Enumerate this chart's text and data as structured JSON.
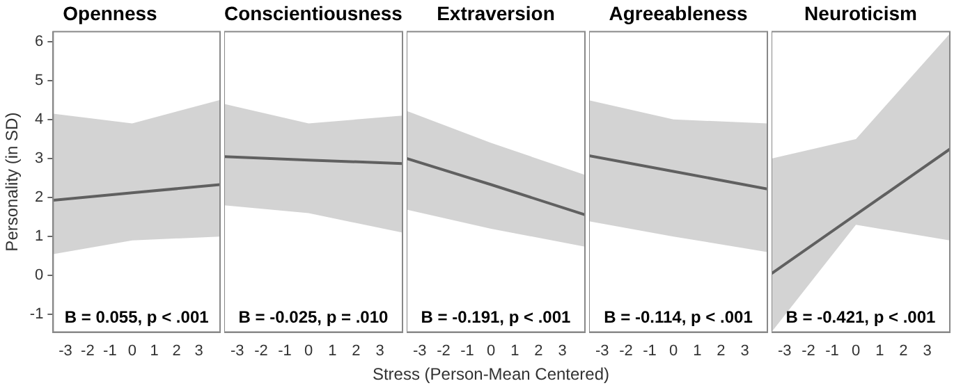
{
  "chart_data": [
    {
      "type": "line",
      "title": "Openness",
      "ylabel": "Personality (in SD)",
      "xlim": [
        -3.55,
        3.95
      ],
      "xticks": [
        -3,
        -2,
        -1,
        0,
        1,
        2,
        3
      ],
      "ylim": [
        -1.45,
        6.25
      ],
      "yticks": [
        -1,
        0,
        1,
        2,
        3,
        4,
        5,
        6
      ],
      "grid": false,
      "legend": false,
      "marker": "none",
      "series": [
        {
          "color": "#000000",
          "x": [
            -3.55,
            0,
            3.95
          ],
          "values": [
            1.93,
            2.12,
            2.33
          ],
          "lower": [
            0.55,
            0.9,
            1.0
          ],
          "upper": [
            4.15,
            3.9,
            4.5
          ]
        }
      ],
      "annotations": [
        "B = 0.055, p < .001"
      ]
    },
    {
      "type": "line",
      "title": "Conscientiousness",
      "xlim": [
        -3.55,
        3.95
      ],
      "xticks": [
        -3,
        -2,
        -1,
        0,
        1,
        2,
        3
      ],
      "ylim": [
        -1.45,
        6.25
      ],
      "yticks": [
        -1,
        0,
        1,
        2,
        3,
        4,
        5,
        6
      ],
      "tick_labels": "x",
      "grid": false,
      "legend": false,
      "marker": "none",
      "series": [
        {
          "color": "#000000",
          "x": [
            -3.55,
            0,
            3.95
          ],
          "values": [
            3.05,
            2.96,
            2.87
          ],
          "lower": [
            1.8,
            1.6,
            1.1
          ],
          "upper": [
            4.4,
            3.9,
            4.1
          ]
        }
      ],
      "annotations": [
        "B = -0.025, p = .010"
      ]
    },
    {
      "type": "line",
      "title": "Extraversion",
      "xlabel": "Stress (Person-Mean Centered)",
      "xlim": [
        -3.55,
        3.95
      ],
      "xticks": [
        -3,
        -2,
        -1,
        0,
        1,
        2,
        3
      ],
      "ylim": [
        -1.45,
        6.25
      ],
      "yticks": [
        -1,
        0,
        1,
        2,
        3,
        4,
        5,
        6
      ],
      "tick_labels": "x",
      "grid": false,
      "legend": false,
      "marker": "none",
      "series": [
        {
          "color": "#000000",
          "x": [
            -3.55,
            0,
            3.95
          ],
          "values": [
            3.0,
            2.33,
            1.56
          ],
          "lower": [
            1.69,
            1.2,
            0.74
          ],
          "upper": [
            4.22,
            3.4,
            2.58
          ]
        }
      ],
      "annotations": [
        "B = -0.191, p < .001"
      ]
    },
    {
      "type": "line",
      "title": "Agreeableness",
      "xlim": [
        -3.55,
        3.95
      ],
      "xticks": [
        -3,
        -2,
        -1,
        0,
        1,
        2,
        3
      ],
      "ylim": [
        -1.45,
        6.25
      ],
      "yticks": [
        -1,
        0,
        1,
        2,
        3,
        4,
        5,
        6
      ],
      "tick_labels": "x",
      "grid": false,
      "legend": false,
      "marker": "none",
      "series": [
        {
          "color": "#000000",
          "x": [
            -3.55,
            0,
            3.95
          ],
          "values": [
            3.07,
            2.67,
            2.22
          ],
          "lower": [
            1.39,
            1.0,
            0.6
          ],
          "upper": [
            4.49,
            4.0,
            3.9
          ]
        }
      ],
      "annotations": [
        "B = -0.114, p < .001"
      ]
    },
    {
      "type": "line",
      "title": "Neuroticism",
      "xlim": [
        -3.55,
        3.95
      ],
      "xticks": [
        -3,
        -2,
        -1,
        0,
        1,
        2,
        3
      ],
      "ylim": [
        -1.45,
        6.25
      ],
      "yticks": [
        -1,
        0,
        1,
        2,
        3,
        4,
        5,
        6
      ],
      "tick_labels": "x",
      "grid": false,
      "legend": false,
      "marker": "none",
      "series": [
        {
          "color": "#000000",
          "x": [
            -3.55,
            0,
            3.95
          ],
          "values": [
            0.05,
            1.56,
            3.24
          ],
          "lower": [
            -1.45,
            1.3,
            0.9
          ],
          "upper": [
            3.0,
            3.5,
            6.2
          ]
        }
      ],
      "annotations": [
        "B = -0.421, p < .001"
      ]
    }
  ]
}
